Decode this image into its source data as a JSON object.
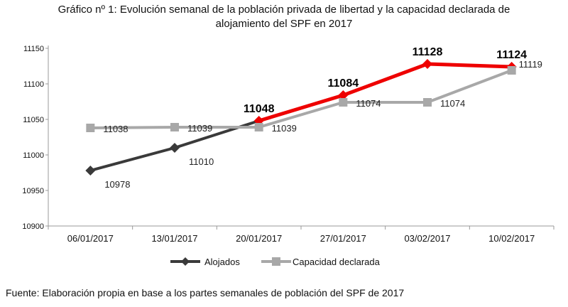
{
  "title_line1": "Gráfico nº 1: Evolución semanal de la población privada de libertad y la capacidad declarada de",
  "title_line2": "alojamiento del SPF en 2017",
  "source": "Fuente: Elaboración propia en base a los partes semanales de población del SPF de 2017",
  "chart_data": {
    "type": "line",
    "title": "Gráfico nº 1: Evolución semanal de la población privada de libertad y la capacidad declarada de alojamiento del SPF en 2017",
    "categories": [
      "06/01/2017",
      "13/01/2017",
      "20/01/2017",
      "27/01/2017",
      "03/02/2017",
      "10/02/2017"
    ],
    "ylim": [
      10900,
      11150
    ],
    "yticks": [
      10900,
      10950,
      11000,
      11050,
      11100,
      11150
    ],
    "grid": false,
    "legend": "bottom",
    "series": [
      {
        "name": "Alojados",
        "values": [
          10978,
          11010,
          11048,
          11084,
          11128,
          11124
        ],
        "marker": "diamond",
        "color": "#3a3a3a",
        "highlight_color": "#ee0000",
        "highlight_from_index": 2,
        "labels": [
          "10978",
          "11010",
          "11048",
          "11084",
          "11128",
          "11124"
        ]
      },
      {
        "name": "Capacidad declarada",
        "values": [
          11038,
          11039,
          11039,
          11074,
          11074,
          11119
        ],
        "marker": "square",
        "color": "#a8a8a8",
        "labels": [
          "11038",
          "11039",
          "11039",
          "11074",
          "11074",
          "11119"
        ]
      }
    ]
  }
}
